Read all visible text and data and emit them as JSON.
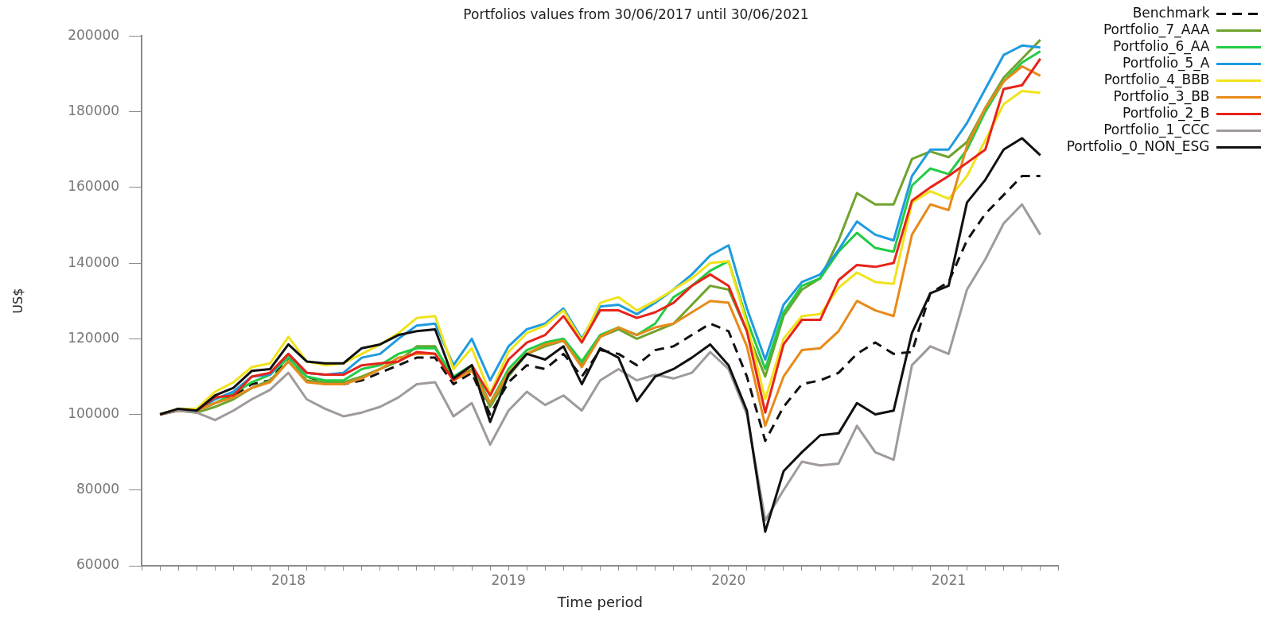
{
  "chart_data": {
    "type": "line",
    "title": "Portfolios values from 30/06/2017 until 30/06/2021",
    "xlabel": "Time period",
    "ylabel": "US$",
    "x": [
      "2017-06",
      "2017-07",
      "2017-08",
      "2017-09",
      "2017-10",
      "2017-11",
      "2017-12",
      "2018-01",
      "2018-02",
      "2018-03",
      "2018-04",
      "2018-05",
      "2018-06",
      "2018-07",
      "2018-08",
      "2018-09",
      "2018-10",
      "2018-11",
      "2018-12",
      "2019-01",
      "2019-02",
      "2019-03",
      "2019-04",
      "2019-05",
      "2019-06",
      "2019-07",
      "2019-08",
      "2019-09",
      "2019-10",
      "2019-11",
      "2019-12",
      "2020-01",
      "2020-02",
      "2020-03",
      "2020-04",
      "2020-05",
      "2020-06",
      "2020-07",
      "2020-08",
      "2020-09",
      "2020-10",
      "2020-11",
      "2020-12",
      "2021-01",
      "2021-02",
      "2021-03",
      "2021-04",
      "2021-05",
      "2021-06"
    ],
    "series": [
      {
        "name": "Benchmark",
        "color": "#111111",
        "line_style": "dashed",
        "values": [
          100000,
          101500,
          101000,
          103000,
          105000,
          108000,
          109000,
          115000,
          110000,
          108500,
          108000,
          109000,
          111000,
          113000,
          115000,
          115000,
          108000,
          111000,
          100000,
          108500,
          113000,
          112000,
          116000,
          110000,
          117000,
          116000,
          113000,
          117000,
          118000,
          121000,
          124000,
          122000,
          110000,
          93000,
          102000,
          108000,
          109000,
          111000,
          116000,
          119000,
          116000,
          116500,
          132000,
          135000,
          146000,
          153000,
          158000,
          163000,
          163000
        ]
      },
      {
        "name": "Portfolio_7_AAA",
        "color": "#6fa32e",
        "values": [
          100000,
          101000,
          100500,
          102000,
          104000,
          107000,
          109000,
          114000,
          109000,
          108500,
          108500,
          110000,
          112000,
          114000,
          118000,
          118000,
          109000,
          112000,
          102000,
          110000,
          116000,
          118000,
          119500,
          113000,
          120500,
          122500,
          120000,
          122000,
          124000,
          129000,
          134000,
          133000,
          122000,
          110000,
          126000,
          133000,
          136000,
          146000,
          158500,
          155500,
          155500,
          167500,
          169500,
          168000,
          172000,
          181000,
          189000,
          194000,
          199000
        ]
      },
      {
        "name": "Portfolio_6_AA",
        "color": "#22cc44",
        "values": [
          null,
          null,
          101000,
          103000,
          105500,
          108500,
          110500,
          115000,
          110000,
          109000,
          109000,
          112000,
          113000,
          116000,
          117500,
          117500,
          110000,
          113000,
          103000,
          112000,
          117000,
          119000,
          120000,
          114000,
          121000,
          123000,
          121000,
          124000,
          131000,
          134000,
          138000,
          140500,
          125000,
          112000,
          127000,
          134000,
          136000,
          143000,
          148000,
          144000,
          143000,
          160500,
          165000,
          163500,
          170000,
          180000,
          188000,
          193000,
          196000
        ]
      },
      {
        "name": "Portfolio_5_A",
        "color": "#1e9be0",
        "values": [
          null,
          null,
          101000,
          104000,
          106000,
          110000,
          110500,
          116000,
          111000,
          110500,
          111000,
          115000,
          116000,
          120000,
          123500,
          124000,
          113000,
          120000,
          109000,
          118000,
          122500,
          124000,
          128000,
          120000,
          128500,
          129000,
          126500,
          129500,
          133000,
          137000,
          142000,
          144700,
          128000,
          114500,
          129000,
          135000,
          137000,
          143500,
          151000,
          147500,
          146000,
          163000,
          170000,
          170000,
          177000,
          186000,
          195000,
          197500,
          197000
        ]
      },
      {
        "name": "Portfolio_4_BBB",
        "color": "#f0e31a",
        "values": [
          100000,
          101500,
          101500,
          106000,
          108500,
          112500,
          113500,
          120500,
          114000,
          113000,
          113500,
          116000,
          118500,
          121500,
          125500,
          126000,
          112000,
          117500,
          105500,
          116500,
          121500,
          123500,
          127500,
          119500,
          129500,
          131000,
          127500,
          130000,
          133000,
          136000,
          140000,
          140500,
          124000,
          104000,
          120000,
          126000,
          126500,
          133500,
          137500,
          135000,
          134500,
          156000,
          159000,
          157000,
          163000,
          172500,
          182000,
          185500,
          185000
        ]
      },
      {
        "name": "Portfolio_3_BB",
        "color": "#e88a1a",
        "values": [
          100000,
          101000,
          101000,
          103000,
          104500,
          107000,
          108500,
          114000,
          108500,
          108000,
          108000,
          109500,
          112000,
          115000,
          116000,
          116000,
          109000,
          111500,
          103000,
          111000,
          116000,
          118500,
          119500,
          112500,
          120500,
          123000,
          121000,
          123000,
          124000,
          127000,
          130000,
          129500,
          118000,
          97000,
          110000,
          117000,
          117500,
          122000,
          130000,
          127500,
          126000,
          147500,
          155500,
          154000,
          171000,
          181000,
          188000,
          192000,
          189500
        ]
      },
      {
        "name": "Portfolio_2_B",
        "color": "#e8231a",
        "values": [
          100000,
          101000,
          101000,
          104500,
          105000,
          110000,
          111000,
          116000,
          111000,
          110500,
          110500,
          113000,
          113500,
          114000,
          116500,
          116000,
          109000,
          113000,
          105000,
          114500,
          119000,
          121000,
          126000,
          119000,
          127500,
          127500,
          125500,
          127000,
          129500,
          134000,
          137000,
          134000,
          122000,
          100500,
          118500,
          125000,
          125000,
          135500,
          139500,
          139000,
          140000,
          156500,
          160000,
          163000,
          166500,
          170000,
          186000,
          187000,
          194000
        ]
      },
      {
        "name": "Portfolio_1_CCC",
        "color": "#a09a9a",
        "values": [
          100000,
          101000,
          100500,
          98500,
          101000,
          104000,
          106500,
          111000,
          104000,
          101500,
          99500,
          100500,
          102000,
          104500,
          108000,
          108500,
          99500,
          103000,
          92000,
          101000,
          106000,
          102500,
          105000,
          101000,
          109000,
          112000,
          109000,
          110500,
          109500,
          111000,
          116500,
          112000,
          100000,
          72000,
          80000,
          87500,
          86500,
          87000,
          97000,
          90000,
          88000,
          113000,
          118000,
          116000,
          133000,
          141000,
          150500,
          155500,
          147500
        ]
      },
      {
        "name": "Portfolio_0_NON_ESG",
        "color": "#111111",
        "values": [
          100000,
          101500,
          101000,
          105000,
          107000,
          111500,
          112000,
          118500,
          114000,
          113500,
          113500,
          117500,
          118500,
          121000,
          122000,
          122500,
          109500,
          113000,
          98000,
          110500,
          116000,
          114500,
          118000,
          108000,
          117500,
          115000,
          103500,
          110000,
          112000,
          115000,
          118500,
          113000,
          101000,
          69000,
          85000,
          90000,
          94500,
          95000,
          103000,
          100000,
          101000,
          121500,
          132000,
          134000,
          156000,
          162000,
          170000,
          173000,
          168500
        ]
      }
    ],
    "xlim": [
      "2017-05",
      "2021-07"
    ],
    "xticks": [
      {
        "value": "2017-05",
        "label": null
      },
      {
        "value": "2017-06",
        "label": null
      },
      {
        "value": "2017-07",
        "label": null
      },
      {
        "value": "2017-08",
        "label": null
      },
      {
        "value": "2017-09",
        "label": null
      },
      {
        "value": "2017-10",
        "label": null
      },
      {
        "value": "2017-11",
        "label": null
      },
      {
        "value": "2017-12",
        "label": null
      },
      {
        "value": "2018-01",
        "label": "2018"
      },
      {
        "value": "2018-02",
        "label": null
      },
      {
        "value": "2018-03",
        "label": null
      },
      {
        "value": "2018-04",
        "label": null
      },
      {
        "value": "2018-05",
        "label": null
      },
      {
        "value": "2018-06",
        "label": null
      },
      {
        "value": "2018-07",
        "label": null
      },
      {
        "value": "2018-08",
        "label": null
      },
      {
        "value": "2018-09",
        "label": null
      },
      {
        "value": "2018-10",
        "label": null
      },
      {
        "value": "2018-11",
        "label": null
      },
      {
        "value": "2018-12",
        "label": null
      },
      {
        "value": "2019-01",
        "label": "2019"
      },
      {
        "value": "2019-02",
        "label": null
      },
      {
        "value": "2019-03",
        "label": null
      },
      {
        "value": "2019-04",
        "label": null
      },
      {
        "value": "2019-05",
        "label": null
      },
      {
        "value": "2019-06",
        "label": null
      },
      {
        "value": "2019-07",
        "label": null
      },
      {
        "value": "2019-08",
        "label": null
      },
      {
        "value": "2019-09",
        "label": null
      },
      {
        "value": "2019-10",
        "label": null
      },
      {
        "value": "2019-11",
        "label": null
      },
      {
        "value": "2019-12",
        "label": null
      },
      {
        "value": "2020-01",
        "label": "2020"
      },
      {
        "value": "2020-02",
        "label": null
      },
      {
        "value": "2020-03",
        "label": null
      },
      {
        "value": "2020-04",
        "label": null
      },
      {
        "value": "2020-05",
        "label": null
      },
      {
        "value": "2020-06",
        "label": null
      },
      {
        "value": "2020-07",
        "label": null
      },
      {
        "value": "2020-08",
        "label": null
      },
      {
        "value": "2020-09",
        "label": null
      },
      {
        "value": "2020-10",
        "label": null
      },
      {
        "value": "2020-11",
        "label": null
      },
      {
        "value": "2020-12",
        "label": null
      },
      {
        "value": "2021-01",
        "label": "2021"
      },
      {
        "value": "2021-02",
        "label": null
      },
      {
        "value": "2021-03",
        "label": null
      },
      {
        "value": "2021-04",
        "label": null
      },
      {
        "value": "2021-05",
        "label": null
      },
      {
        "value": "2021-06",
        "label": null
      },
      {
        "value": "2021-07",
        "label": null
      }
    ],
    "ylim": [
      60000,
      200000
    ],
    "yticks": [
      60000,
      80000,
      100000,
      120000,
      140000,
      160000,
      180000,
      200000
    ],
    "legend": "top right",
    "marker": "none"
  }
}
